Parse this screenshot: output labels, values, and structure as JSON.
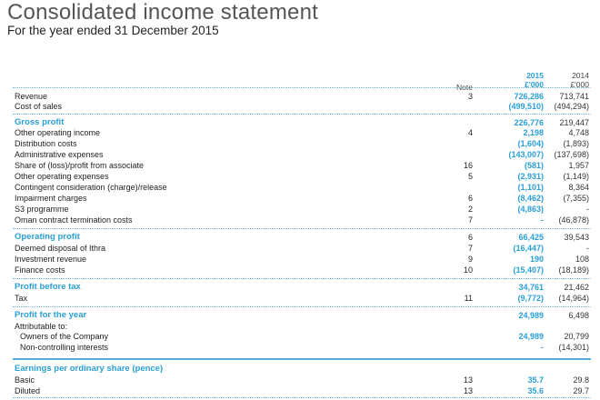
{
  "title": "Consolidated income statement",
  "subtitle": "For the year ended 31 December 2015",
  "headers": {
    "note": "Note",
    "y2015": "2015",
    "y2015_unit": "£'000",
    "y2014": "2014",
    "y2014_unit": "£'000"
  },
  "rows": [
    {
      "label": "Revenue",
      "note": "3",
      "v2015": "726,286",
      "v2014": "713,741"
    },
    {
      "label": "Cost of sales",
      "note": "",
      "v2015": "(499,510)",
      "v2014": "(494,294)"
    },
    {
      "label": "Gross profit",
      "note": "",
      "v2015": "226,776",
      "v2014": "219,447"
    },
    {
      "label": "Other operating income",
      "note": "4",
      "v2015": "2,198",
      "v2014": "4,748"
    },
    {
      "label": "Distribution costs",
      "note": "",
      "v2015": "(1,604)",
      "v2014": "(1,893)"
    },
    {
      "label": "Administrative expenses",
      "note": "",
      "v2015": "(143,007)",
      "v2014": "(137,698)"
    },
    {
      "label": "Share of (loss)/profit from associate",
      "note": "16",
      "v2015": "(581)",
      "v2014": "1,957"
    },
    {
      "label": "Other operating expenses",
      "note": "5",
      "v2015": "(2,931)",
      "v2014": "(1,149)"
    },
    {
      "label": "Contingent consideration (charge)/release",
      "note": "",
      "v2015": "(1,101)",
      "v2014": "8,364"
    },
    {
      "label": "Impairment charges",
      "note": "6",
      "v2015": "(8,462)",
      "v2014": "(7,355)"
    },
    {
      "label": "S3 programme",
      "note": "2",
      "v2015": "(4,863)",
      "v2014": "-"
    },
    {
      "label": "Oman contract termination costs",
      "note": "7",
      "v2015": "-",
      "v2014": "(46,878)"
    },
    {
      "label": "Operating profit",
      "note": "6",
      "v2015": "66,425",
      "v2014": "39,543"
    },
    {
      "label": "Deemed disposal of Ithra",
      "note": "7",
      "v2015": "(16,447)",
      "v2014": "-"
    },
    {
      "label": "Investment revenue",
      "note": "9",
      "v2015": "190",
      "v2014": "108"
    },
    {
      "label": "Finance costs",
      "note": "10",
      "v2015": "(15,407)",
      "v2014": "(18,189)"
    },
    {
      "label": "Profit before tax",
      "note": "",
      "v2015": "34,761",
      "v2014": "21,462"
    },
    {
      "label": "Tax",
      "note": "11",
      "v2015": "(9,772)",
      "v2014": "(14,964)"
    },
    {
      "label": "Profit for the year",
      "note": "",
      "v2015": "24,989",
      "v2014": "6,498"
    },
    {
      "label": "Attributable to:",
      "note": "",
      "v2015": "",
      "v2014": ""
    },
    {
      "label": "Owners of the Company",
      "note": "",
      "v2015": "24,989",
      "v2014": "20,799"
    },
    {
      "label": "Non-controlling interests",
      "note": "",
      "v2015": "-",
      "v2014": "(14,301)"
    },
    {
      "label": "Earnings per ordinary share (pence)",
      "note": "",
      "v2015": "",
      "v2014": ""
    },
    {
      "label": "Basic",
      "note": "13",
      "v2015": "35.7",
      "v2014": "29.8"
    },
    {
      "label": "Diluted",
      "note": "13",
      "v2015": "35.6",
      "v2014": "29.7"
    }
  ]
}
